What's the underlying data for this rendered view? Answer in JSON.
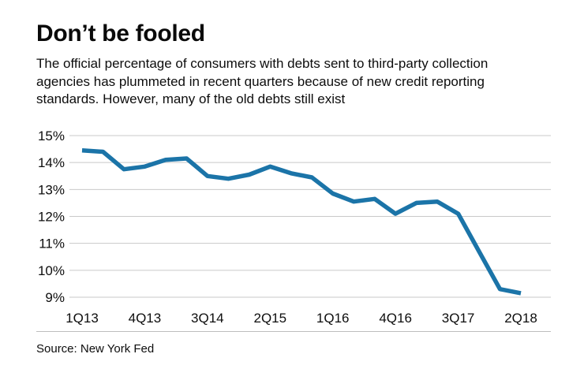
{
  "chart_data": {
    "type": "line",
    "title": "Don’t be fooled",
    "subtitle": "The official percentage of consumers with debts sent to third-party collection agencies has plummeted in recent quarters because of new credit reporting standards. However, many of the old debts still exist",
    "source": "Source: New York Fed",
    "x": [
      "1Q13",
      "2Q13",
      "3Q13",
      "4Q13",
      "1Q14",
      "2Q14",
      "3Q14",
      "4Q14",
      "1Q15",
      "2Q15",
      "3Q15",
      "4Q15",
      "1Q16",
      "2Q16",
      "3Q16",
      "4Q16",
      "1Q17",
      "2Q17",
      "3Q17",
      "4Q17",
      "1Q18",
      "2Q18"
    ],
    "values": [
      14.45,
      14.4,
      13.75,
      13.85,
      14.1,
      14.15,
      13.5,
      13.4,
      13.55,
      13.85,
      13.6,
      13.45,
      12.85,
      12.55,
      12.65,
      12.1,
      12.5,
      12.55,
      12.1,
      10.7,
      9.3,
      9.15
    ],
    "x_tick_labels": [
      "1Q13",
      "4Q13",
      "3Q14",
      "2Q15",
      "1Q16",
      "4Q16",
      "3Q17",
      "2Q18"
    ],
    "x_tick_indices": [
      0,
      3,
      6,
      9,
      12,
      15,
      18,
      21
    ],
    "y_ticks": [
      15,
      14,
      13,
      12,
      11,
      10,
      9
    ],
    "y_tick_suffix": "%",
    "ylim": [
      9,
      15
    ],
    "grid": true,
    "legend": "none",
    "line_color": "#1b74a8",
    "grid_color": "#c9c9c9",
    "text_color": "#0d0d0d"
  }
}
